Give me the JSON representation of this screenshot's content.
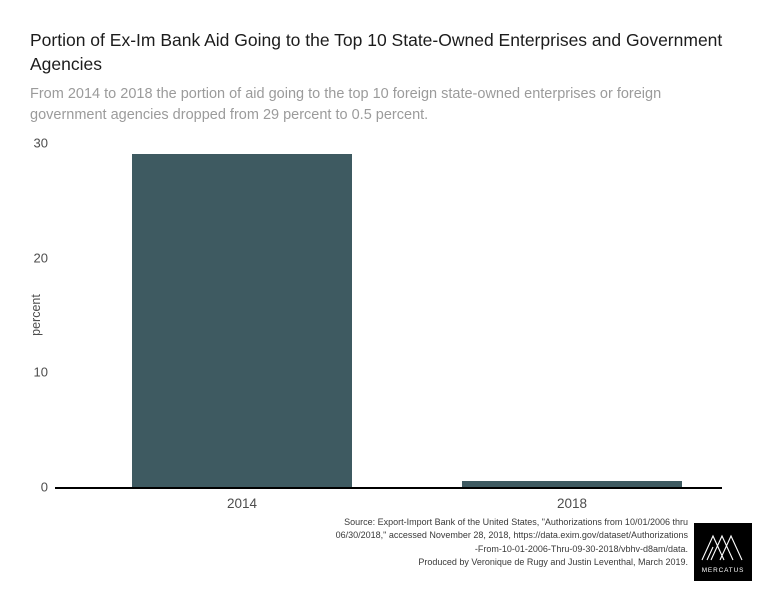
{
  "header": {
    "title": "Portion of Ex-Im Bank Aid Going to the Top 10 State-Owned Enterprises and Government Agencies",
    "subtitle": "From 2014 to 2018 the portion of aid going to the top 10 foreign state-owned enterprises or foreign government agencies dropped from 29 percent to 0.5 percent."
  },
  "chart_data": {
    "type": "bar",
    "title": "Portion of Ex-Im Bank Aid Going to the Top 10 State-Owned Enterprises and Government Agencies",
    "categories": [
      "2014",
      "2018"
    ],
    "values": [
      29,
      0.5
    ],
    "xlabel": "",
    "ylabel": "percent",
    "ylim": [
      0,
      30
    ],
    "yticks": [
      0,
      10,
      20,
      30
    ],
    "bar_color": "#3e5a61",
    "axis_color": "#000000",
    "grid": false,
    "legend_position": "none"
  },
  "footer": {
    "source_text": "Source: Export-Import Bank of the United States, \"Authorizations from 10/01/2006 thru\n06/30/2018,\" accessed November 28, 2018, https://data.exim.gov/dataset/Authorizations\n-From-10-01-2006-Thru-09-30-2018/vbhv-d8am/data.\nProduced by Veronique de Rugy and Justin Leventhal, March 2019.",
    "logo_text": "MERCATUS"
  }
}
